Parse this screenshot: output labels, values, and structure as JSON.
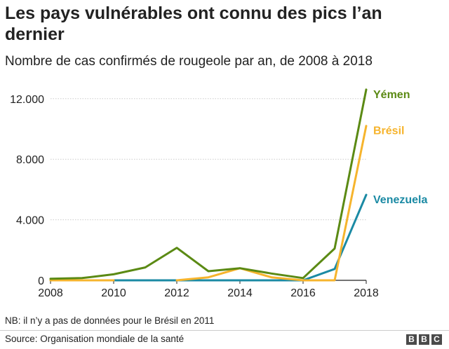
{
  "title": "Les pays vulnérables ont connu des pics l’an dernier",
  "subtitle": "Nombre de cas confirmés de rougeole par an, de 2008 à 2018",
  "note": "NB: il n’y a pas de données pour le Brésil en 2011",
  "source": "Source: Organisation mondiale de la santé",
  "logo": [
    "B",
    "B",
    "C"
  ],
  "chart_data": {
    "type": "line",
    "title": "Les pays vulnérables ont connu des pics l’an dernier",
    "subtitle": "Nombre de cas confirmés de rougeole par an, de 2008 à 2018",
    "xlabel": "",
    "ylabel": "",
    "x": [
      2008,
      2009,
      2010,
      2011,
      2012,
      2013,
      2014,
      2015,
      2016,
      2017,
      2018
    ],
    "xticks": [
      2008,
      2010,
      2012,
      2014,
      2016,
      2018
    ],
    "xtick_labels": [
      "2008",
      "2010",
      "2012",
      "2014",
      "2016",
      "2018"
    ],
    "ylim": [
      0,
      12500
    ],
    "yticks": [
      0,
      4000,
      8000,
      12000
    ],
    "ytick_labels": [
      "0",
      "4.000",
      "8.000",
      "12.000"
    ],
    "grid": "horizontal",
    "legend": "direct labels at right end of lines",
    "series": [
      {
        "name": "Yémen",
        "color": "#5b8a14",
        "values": [
          100,
          150,
          400,
          850,
          2150,
          600,
          800,
          450,
          150,
          2100,
          12600
        ]
      },
      {
        "name": "Brésil",
        "color": "#f6b42d",
        "values": [
          0,
          0,
          0,
          null,
          0,
          200,
          800,
          200,
          0,
          0,
          10200
        ]
      },
      {
        "name": "Venezuela",
        "color": "#1b8aa4",
        "values": [
          0,
          0,
          0,
          0,
          0,
          0,
          0,
          0,
          0,
          750,
          5650
        ]
      }
    ]
  }
}
